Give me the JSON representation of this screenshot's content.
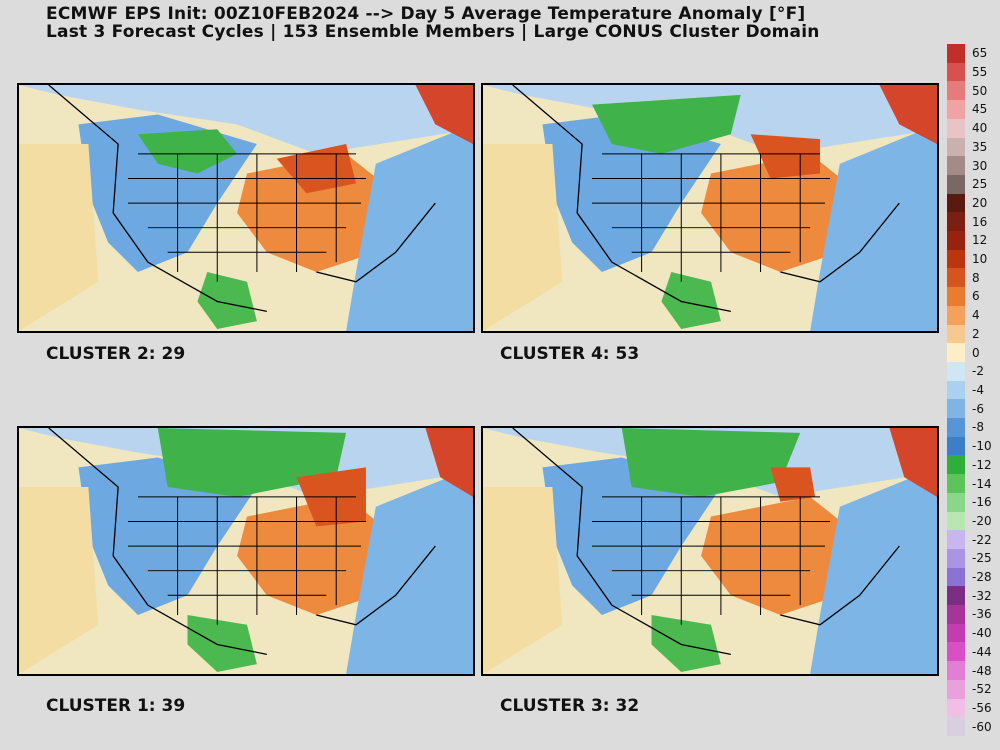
{
  "header": {
    "line1": "ECMWF EPS Init: 00Z10FEB2024 --> Day 5 Average Temperature Anomaly [°F]",
    "line2": "Last 3 Forecast Cycles | 153 Ensemble Members | Large CONUS Cluster Domain"
  },
  "panels": [
    {
      "label": "CLUSTER 2: 29"
    },
    {
      "label": "CLUSTER 4: 53"
    },
    {
      "label": "CLUSTER 1: 39"
    },
    {
      "label": "CLUSTER 3: 32"
    }
  ],
  "colorbar": {
    "ticks": [
      "65",
      "55",
      "50",
      "45",
      "40",
      "35",
      "30",
      "25",
      "20",
      "16",
      "12",
      "10",
      "8",
      "6",
      "4",
      "2",
      "0",
      "-2",
      "-4",
      "-6",
      "-8",
      "-10",
      "-12",
      "-14",
      "-16",
      "-20",
      "-22",
      "-25",
      "-28",
      "-32",
      "-36",
      "-40",
      "-44",
      "-48",
      "-52",
      "-56",
      "-60"
    ],
    "colors": [
      "#c03028",
      "#d85050",
      "#e77b7b",
      "#f0a3a3",
      "#e8c4c4",
      "#c9b1ae",
      "#a38b86",
      "#7a6862",
      "#5b1a10",
      "#7a1f12",
      "#98220f",
      "#b9360f",
      "#d6541d",
      "#ea7c32",
      "#f4a25b",
      "#f8c98e",
      "#fdeec7",
      "#cfe6f4",
      "#aad1ee",
      "#7fb4e4",
      "#5796d6",
      "#3c7ec8",
      "#2fae3a",
      "#5cc45a",
      "#8ad78a",
      "#b8e7b2",
      "#c8b7ee",
      "#a895e3",
      "#8a73d4",
      "#7c2e85",
      "#a63599",
      "#c43db0",
      "#d950c5",
      "#e27ed4",
      "#e9a1de",
      "#efbfe6",
      "#d8cfe0"
    ]
  }
}
